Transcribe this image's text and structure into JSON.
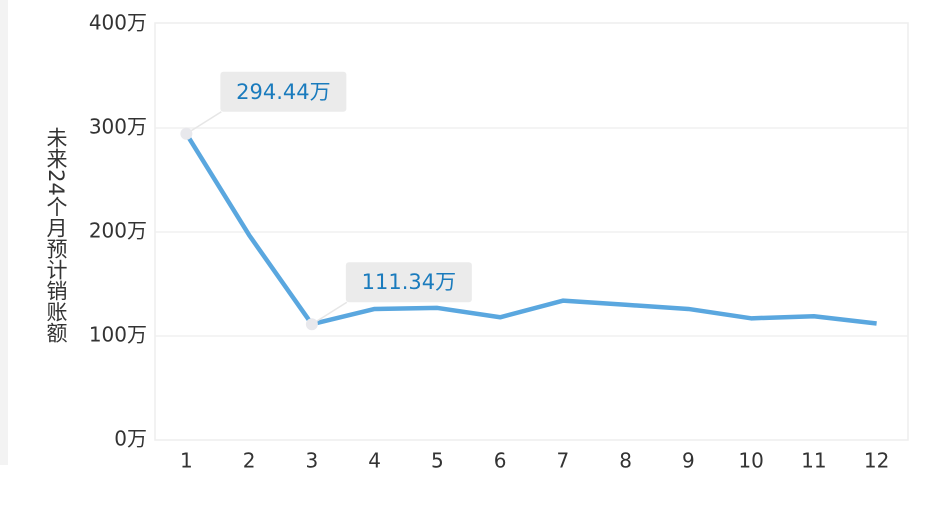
{
  "chart_data": {
    "type": "line",
    "y_label": "未来24个月预计销账额",
    "x": [
      1,
      2,
      3,
      4,
      5,
      6,
      7,
      8,
      9,
      10,
      11,
      12
    ],
    "xlim": [
      0.5,
      12.5
    ],
    "xticks": [
      1,
      2,
      3,
      4,
      5,
      6,
      7,
      8,
      9,
      10,
      11,
      12
    ],
    "values": [
      294.44,
      197,
      111.34,
      126,
      127,
      118,
      134,
      130,
      126,
      117,
      119,
      112
    ],
    "value_labels": [
      "294.44万",
      null,
      "111.34万",
      null,
      null,
      null,
      null,
      null,
      null,
      null,
      null,
      null
    ],
    "color": "#5aa7df",
    "ylim": [
      0,
      400
    ],
    "yticks": [
      {
        "value": 0,
        "label": "0万"
      },
      {
        "value": 100,
        "label": "100万"
      },
      {
        "value": 200,
        "label": "200万"
      },
      {
        "value": 300,
        "label": "300万"
      },
      {
        "value": 400,
        "label": "400万"
      }
    ],
    "grid": true
  }
}
